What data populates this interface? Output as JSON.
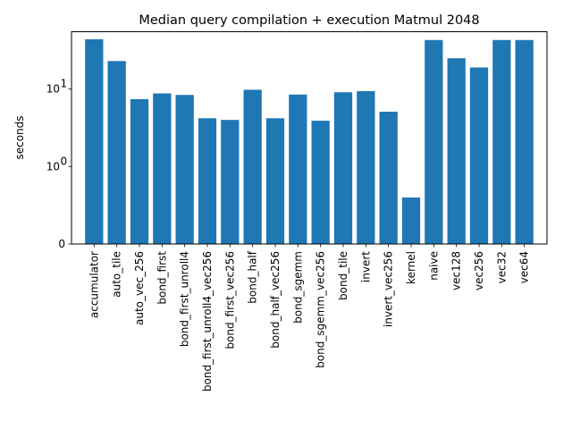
{
  "chart_data": {
    "type": "bar",
    "title": "Median query compilation + execution Matmul 2048",
    "xlabel": "",
    "ylabel": "seconds",
    "yscale": "symlog",
    "ylim": [
      0,
      55
    ],
    "yticks": [
      {
        "value": 0,
        "label": "0"
      },
      {
        "value": 1,
        "label": "10",
        "exp": "0"
      },
      {
        "value": 10,
        "label": "10",
        "exp": "1"
      }
    ],
    "grid": false,
    "color": "#1f77b4",
    "categories": [
      "accumulator",
      "auto_tile",
      "auto_vec_256",
      "bond_first",
      "bond_first_unroll4",
      "bond_first_unroll4_vec256",
      "bond_first_vec256",
      "bond_half",
      "bond_half_vec256",
      "bond_sgemm",
      "bond_sgemm_vec256",
      "bond_tile",
      "invert",
      "invert_vec256",
      "kernel",
      "naive",
      "vec128",
      "vec256",
      "vec32",
      "vec64"
    ],
    "values": [
      44.0,
      23.0,
      7.4,
      8.8,
      8.4,
      4.2,
      4.0,
      9.8,
      4.2,
      8.5,
      3.9,
      9.1,
      9.4,
      5.1,
      0.6,
      43.0,
      25.0,
      19.0,
      43.0,
      43.0
    ]
  }
}
